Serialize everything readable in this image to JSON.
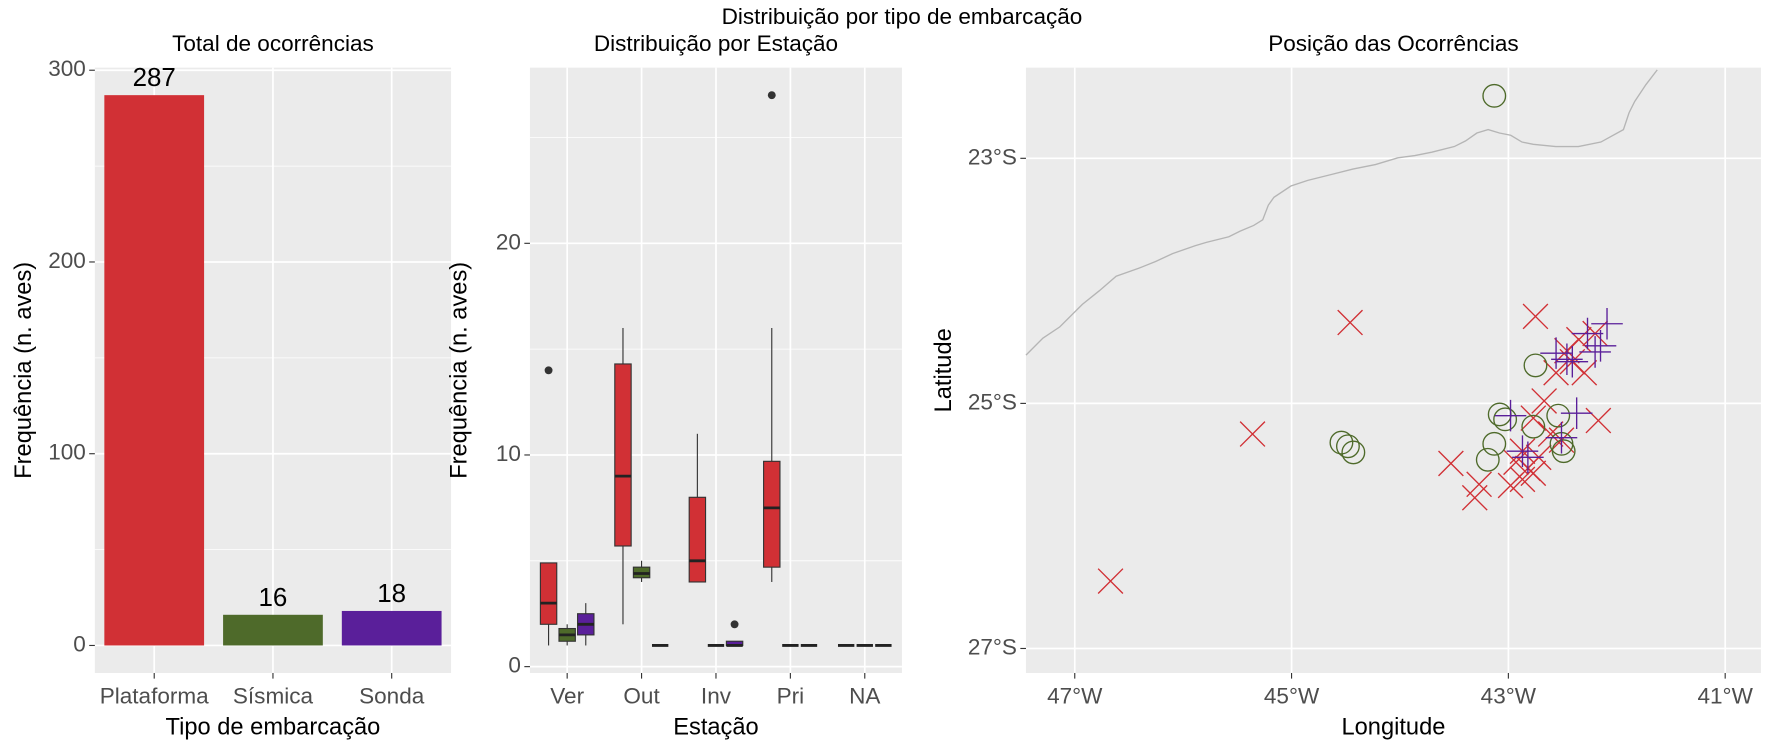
{
  "title": "Distribuição por tipo de embarcação",
  "chart_data": [
    {
      "type": "bar",
      "title": "Total de ocorrências",
      "x_label": "Tipo de embarcação",
      "y_label": "Frequência (n. aves)",
      "categories": [
        "Plataforma",
        "Sísmica",
        "Sonda"
      ],
      "values": [
        287,
        16,
        18
      ],
      "colors": [
        "#d13035",
        "#4e6a2a",
        "#5a1f9a"
      ],
      "ylim": [
        -14.35,
        301.35
      ],
      "yticks": [
        0,
        100,
        200,
        300
      ],
      "grid": true
    },
    {
      "type": "box",
      "title": "Distribuição por Estação",
      "x_label": "Estação",
      "y_label": "Frequência (n. aves)",
      "categories": [
        "Ver",
        "Out",
        "Inv",
        "Pri",
        "NA"
      ],
      "series": [
        {
          "color": "#d13035",
          "low": [
            1,
            2,
            4,
            4,
            1
          ],
          "q1": [
            2,
            5.7,
            4,
            4.7,
            1
          ],
          "median": [
            3,
            9,
            5,
            7.5,
            1
          ],
          "q3": [
            4.9,
            14.3,
            8,
            9.7,
            1
          ],
          "high": [
            4.9,
            16,
            11,
            16,
            1
          ],
          "outliers": [
            [
              14
            ],
            [],
            [],
            [
              27
            ],
            []
          ]
        },
        {
          "color": "#4e6a2a",
          "low": [
            1,
            4,
            1,
            1,
            1
          ],
          "q1": [
            1.2,
            4.2,
            1,
            1,
            1
          ],
          "median": [
            1.5,
            4.4,
            1,
            1,
            1
          ],
          "q3": [
            1.8,
            4.7,
            1,
            1,
            1
          ],
          "high": [
            2,
            5,
            1,
            1,
            1
          ],
          "outliers": [
            [],
            [],
            [],
            [],
            []
          ]
        },
        {
          "color": "#5a1f9a",
          "low": [
            1,
            1,
            1,
            1,
            1
          ],
          "q1": [
            1.5,
            1,
            1,
            1,
            1
          ],
          "median": [
            2,
            1,
            1,
            1,
            1
          ],
          "q3": [
            2.5,
            1,
            1.2,
            1,
            1
          ],
          "high": [
            3,
            1,
            1.2,
            1,
            1
          ],
          "outliers": [
            [],
            [],
            [
              2
            ],
            [],
            []
          ]
        }
      ],
      "ylim": [
        -0.3,
        28.3
      ],
      "yticks": [
        0,
        10,
        20
      ],
      "grid": true
    },
    {
      "type": "scatter",
      "title": "Posição das Ocorrências",
      "x_label": "Longitude",
      "y_label": "Latitude",
      "series": [
        {
          "color": "#d13035",
          "marker": "x",
          "x": [
            -44.46,
            -45.36,
            -46.67,
            -42.75,
            -43.53,
            -43.27,
            -43.31,
            -42.17,
            -42.46,
            -42.56,
            -42.67,
            -42.77,
            -42.87,
            -42.93,
            -42.82,
            -42.77,
            -42.87,
            -42.98,
            -42.72,
            -42.41,
            -42.35,
            -42.2,
            -42.3,
            -42.51,
            -42.61
          ],
          "y": [
            -24.34,
            -25.25,
            -26.45,
            -24.29,
            -25.49,
            -25.66,
            -25.77,
            -25.14,
            -24.57,
            -24.75,
            -24.98,
            -25.12,
            -25.39,
            -25.48,
            -25.53,
            -25.57,
            -25.62,
            -25.67,
            -25.44,
            -24.66,
            -24.48,
            -24.43,
            -24.75,
            -25.3,
            -25.25
          ]
        },
        {
          "color": "#4e6a2a",
          "marker": "circle",
          "x": [
            -43.13,
            -42.75,
            -43.08,
            -42.77,
            -42.54,
            -42.51,
            -42.49,
            -43.13,
            -43.19,
            -44.54,
            -44.48,
            -44.43,
            -43.03
          ],
          "y": [
            -22.49,
            -24.69,
            -25.09,
            -25.19,
            -25.1,
            -25.33,
            -25.39,
            -25.33,
            -25.46,
            -25.32,
            -25.35,
            -25.4,
            -25.13
          ]
        },
        {
          "color": "#5a1f9a",
          "marker": "plus",
          "x": [
            -42.09,
            -42.27,
            -42.56,
            -42.46,
            -42.41,
            -42.15,
            -42.2,
            -42.98,
            -42.37,
            -42.51,
            -42.87,
            -42.82
          ],
          "y": [
            -24.35,
            -24.43,
            -24.59,
            -24.64,
            -24.66,
            -24.53,
            -24.58,
            -25.1,
            -25.08,
            -25.28,
            -25.39,
            -25.44
          ]
        }
      ],
      "xlim": [
        -47.45,
        -40.67
      ],
      "ylim": [
        -27.2,
        -22.26
      ],
      "xticks": [
        {
          "value": -47,
          "label": "47°W"
        },
        {
          "value": -45,
          "label": "45°W"
        },
        {
          "value": -43,
          "label": "43°W"
        },
        {
          "value": -41,
          "label": "41°W"
        }
      ],
      "yticks": [
        {
          "value": -23,
          "label": "23°S"
        },
        {
          "value": -25,
          "label": "25°S"
        },
        {
          "value": -27,
          "label": "27°S"
        }
      ],
      "grid": true
    }
  ]
}
